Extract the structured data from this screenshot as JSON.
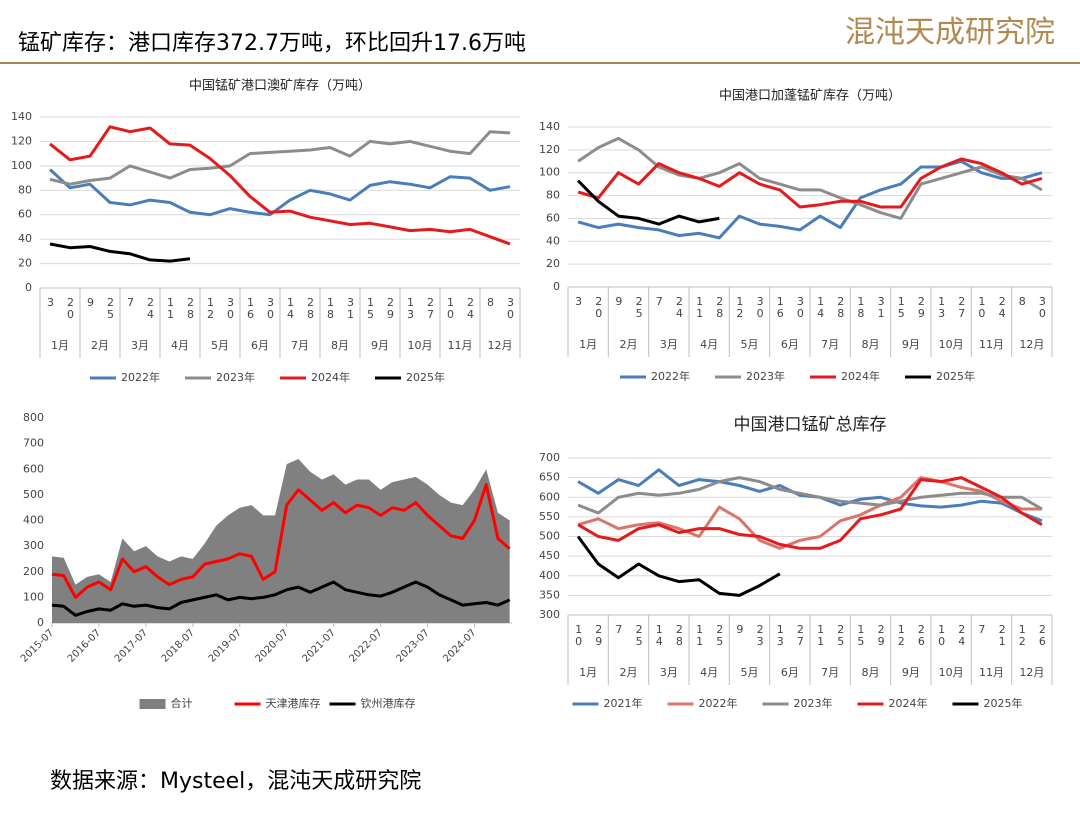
{
  "header": {
    "title": "锰矿库存：港口库存372.7万吨，环比回升17.6万吨",
    "logo": "混沌天成研究院"
  },
  "footer": {
    "source": "数据来源：Mysteel，混沌天成研究院"
  },
  "chart_data": [
    {
      "type": "line",
      "title": "中国锰矿港口澳矿库存（万吨）",
      "grid": true,
      "categories": [
        "3",
        "20",
        "9",
        "25",
        "7",
        "24",
        "11",
        "28",
        "12",
        "30",
        "16",
        "30",
        "14",
        "28",
        "18",
        "31",
        "15",
        "29",
        "13",
        "27",
        "10",
        "24",
        "8",
        "30"
      ],
      "months": [
        "1月",
        "2月",
        "3月",
        "4月",
        "5月",
        "6月",
        "7月",
        "8月",
        "9月",
        "10月",
        "11月",
        "12月"
      ],
      "ylim": [
        0,
        140
      ],
      "yticks": [
        0,
        20,
        40,
        60,
        80,
        100,
        120,
        140
      ],
      "series": [
        {
          "name": "2022年",
          "color": "#4a7ebb",
          "values": [
            97,
            82,
            85,
            70,
            68,
            72,
            70,
            62,
            60,
            65,
            62,
            60,
            72,
            80,
            77,
            72,
            84,
            87,
            85,
            82,
            91,
            90,
            80,
            83
          ]
        },
        {
          "name": "2023年",
          "color": "#8c8c8c",
          "values": [
            89,
            85,
            88,
            90,
            100,
            95,
            90,
            97,
            98,
            100,
            110,
            111,
            112,
            113,
            115,
            108,
            120,
            118,
            120,
            116,
            112,
            110,
            128,
            127
          ]
        },
        {
          "name": "2024年",
          "color": "#e41a1c",
          "values": [
            118,
            105,
            108,
            132,
            128,
            131,
            118,
            117,
            106,
            92,
            75,
            62,
            63,
            58,
            55,
            52,
            53,
            50,
            47,
            48,
            46,
            48,
            42,
            36
          ]
        },
        {
          "name": "2025年",
          "color": "#000000",
          "values": [
            36,
            33,
            34,
            30,
            28,
            23,
            22,
            24,
            null,
            null,
            null,
            null,
            null,
            null,
            null,
            null,
            null,
            null,
            null,
            null,
            null,
            null,
            null,
            null
          ]
        }
      ]
    },
    {
      "type": "line",
      "title": "中国港口加蓬锰矿库存（万吨）",
      "grid": true,
      "categories": [
        "3",
        "20",
        "9",
        "25",
        "7",
        "24",
        "11",
        "28",
        "12",
        "30",
        "16",
        "30",
        "14",
        "28",
        "18",
        "31",
        "15",
        "29",
        "13",
        "27",
        "10",
        "24",
        "8",
        "30"
      ],
      "months": [
        "1月",
        "2月",
        "3月",
        "4月",
        "5月",
        "6月",
        "7月",
        "8月",
        "9月",
        "10月",
        "11月",
        "12月"
      ],
      "ylim": [
        0,
        140
      ],
      "yticks": [
        0,
        20,
        40,
        60,
        80,
        100,
        120,
        140
      ],
      "series": [
        {
          "name": "2022年",
          "color": "#4a7ebb",
          "values": [
            57,
            52,
            55,
            52,
            50,
            45,
            47,
            43,
            62,
            55,
            53,
            50,
            62,
            52,
            78,
            85,
            90,
            105,
            105,
            110,
            100,
            95,
            95,
            100
          ]
        },
        {
          "name": "2023年",
          "color": "#8c8c8c",
          "values": [
            110,
            122,
            130,
            120,
            105,
            98,
            95,
            100,
            108,
            95,
            90,
            85,
            85,
            78,
            72,
            65,
            60,
            90,
            95,
            100,
            105,
            98,
            95,
            85
          ]
        },
        {
          "name": "2024年",
          "color": "#e41a1c",
          "values": [
            83,
            78,
            100,
            90,
            108,
            100,
            95,
            88,
            100,
            90,
            85,
            70,
            72,
            75,
            75,
            70,
            70,
            95,
            105,
            112,
            108,
            100,
            90,
            95
          ]
        },
        {
          "name": "2025年",
          "color": "#000000",
          "values": [
            93,
            75,
            62,
            60,
            55,
            62,
            57,
            60,
            null,
            null,
            null,
            null,
            null,
            null,
            null,
            null,
            null,
            null,
            null,
            null,
            null,
            null,
            null,
            null
          ]
        }
      ]
    },
    {
      "type": "timeseries",
      "grid": false,
      "x": [
        2015.5,
        2015.75,
        2016.0,
        2016.25,
        2016.5,
        2016.75,
        2017.0,
        2017.25,
        2017.5,
        2017.75,
        2018.0,
        2018.25,
        2018.5,
        2018.75,
        2019.0,
        2019.25,
        2019.5,
        2019.75,
        2020.0,
        2020.25,
        2020.5,
        2020.75,
        2021.0,
        2021.25,
        2021.5,
        2021.75,
        2022.0,
        2022.25,
        2022.5,
        2022.75,
        2023.0,
        2023.25,
        2023.5,
        2023.75,
        2024.0,
        2024.25,
        2024.5,
        2024.75,
        2025.0,
        2025.25
      ],
      "xlim": [
        2015.5,
        2025.3
      ],
      "xticks": [
        {
          "value": 2015.5,
          "label": "2015-07"
        },
        {
          "value": 2016.5,
          "label": "2016-07"
        },
        {
          "value": 2017.5,
          "label": "2017-07"
        },
        {
          "value": 2018.5,
          "label": "2018-07"
        },
        {
          "value": 2019.5,
          "label": "2019-07"
        },
        {
          "value": 2020.5,
          "label": "2020-07"
        },
        {
          "value": 2021.5,
          "label": "2021-07"
        },
        {
          "value": 2022.5,
          "label": "2022-07"
        },
        {
          "value": 2023.5,
          "label": "2023-07"
        },
        {
          "value": 2024.5,
          "label": "2024-07"
        }
      ],
      "ylim": [
        0,
        800
      ],
      "yticks": [
        0,
        100,
        200,
        300,
        400,
        500,
        600,
        700,
        800
      ],
      "series": [
        {
          "name": "合计",
          "color": "#808080",
          "kind": "area",
          "values": [
            260,
            255,
            150,
            180,
            190,
            160,
            330,
            280,
            300,
            260,
            240,
            260,
            250,
            310,
            380,
            420,
            450,
            460,
            420,
            420,
            620,
            640,
            590,
            560,
            580,
            540,
            560,
            560,
            520,
            550,
            560,
            570,
            540,
            500,
            470,
            460,
            520,
            600,
            430,
            400
          ]
        },
        {
          "name": "天津港库存",
          "color": "#ff0000",
          "kind": "line",
          "values": [
            190,
            185,
            100,
            140,
            160,
            130,
            250,
            200,
            220,
            180,
            150,
            170,
            180,
            230,
            240,
            250,
            270,
            260,
            170,
            200,
            460,
            520,
            480,
            440,
            470,
            430,
            460,
            450,
            420,
            450,
            440,
            470,
            420,
            380,
            340,
            330,
            400,
            540,
            330,
            290
          ]
        },
        {
          "name": "钦州港库存",
          "color": "#000000",
          "kind": "line",
          "values": [
            70,
            65,
            30,
            45,
            55,
            50,
            75,
            65,
            70,
            60,
            55,
            80,
            90,
            100,
            110,
            90,
            100,
            95,
            100,
            110,
            130,
            140,
            120,
            140,
            160,
            130,
            120,
            110,
            105,
            120,
            140,
            160,
            140,
            110,
            90,
            70,
            75,
            80,
            70,
            90
          ]
        }
      ]
    },
    {
      "type": "line",
      "title": "中国港口锰矿总库存",
      "grid": true,
      "categories": [
        "10",
        "29",
        "7",
        "25",
        "14",
        "28",
        "11",
        "25",
        "9",
        "23",
        "13",
        "27",
        "11",
        "25",
        "15",
        "29",
        "12",
        "26",
        "10",
        "24",
        "7",
        "21",
        "12",
        "26"
      ],
      "months": [
        "1月",
        "2月",
        "3月",
        "4月",
        "5月",
        "6月",
        "7月",
        "8月",
        "9月",
        "10月",
        "11月",
        "12月"
      ],
      "ylim": [
        300,
        700
      ],
      "yticks": [
        300,
        350,
        400,
        450,
        500,
        550,
        600,
        650,
        700
      ],
      "series": [
        {
          "name": "2021年",
          "color": "#4a7ebb",
          "values": [
            640,
            610,
            645,
            630,
            670,
            630,
            645,
            640,
            630,
            615,
            630,
            605,
            600,
            580,
            595,
            600,
            585,
            578,
            575,
            580,
            590,
            585,
            560,
            540
          ]
        },
        {
          "name": "2022年",
          "color": "#d9756a",
          "values": [
            530,
            545,
            520,
            530,
            535,
            520,
            500,
            575,
            545,
            490,
            470,
            490,
            500,
            540,
            555,
            580,
            600,
            650,
            640,
            625,
            615,
            590,
            570,
            570
          ]
        },
        {
          "name": "2023年",
          "color": "#8c8c8c",
          "values": [
            580,
            560,
            600,
            610,
            605,
            610,
            620,
            640,
            650,
            640,
            620,
            610,
            600,
            590,
            585,
            580,
            590,
            600,
            605,
            610,
            610,
            600,
            600,
            570
          ]
        },
        {
          "name": "2024年",
          "color": "#e41a1c",
          "values": [
            530,
            500,
            490,
            520,
            530,
            510,
            520,
            520,
            505,
            500,
            480,
            470,
            470,
            490,
            545,
            555,
            570,
            645,
            640,
            650,
            625,
            600,
            560,
            530
          ]
        },
        {
          "name": "2025年",
          "color": "#000000",
          "values": [
            500,
            430,
            395,
            430,
            400,
            385,
            390,
            355,
            350,
            375,
            405,
            null,
            null,
            null,
            null,
            null,
            null,
            null,
            null,
            null,
            null,
            null,
            null,
            null
          ]
        }
      ]
    }
  ]
}
